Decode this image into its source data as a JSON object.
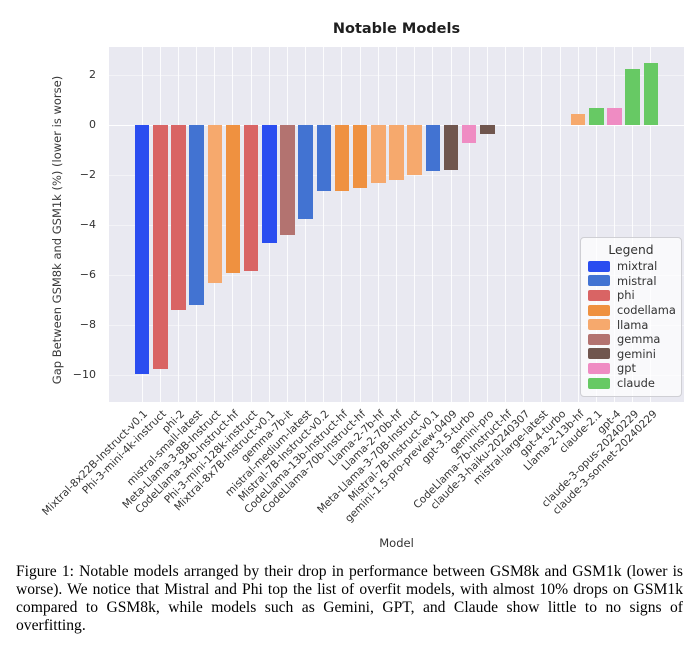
{
  "figure": {
    "title": "Notable Models",
    "xlabel": "Model",
    "ylabel": "Gap Between GSM8k and GSM1k (%) (lower is worse)"
  },
  "legend": {
    "title": "Legend",
    "entries": [
      {
        "label": "mixtral",
        "color": "#2a4df0"
      },
      {
        "label": "mistral",
        "color": "#4273d2"
      },
      {
        "label": "phi",
        "color": "#d96464"
      },
      {
        "label": "codellama",
        "color": "#ef9140"
      },
      {
        "label": "llama",
        "color": "#f6a96d"
      },
      {
        "label": "gemma",
        "color": "#b37370"
      },
      {
        "label": "gemini",
        "color": "#70564e"
      },
      {
        "label": "gpt",
        "color": "#ef8cc3"
      },
      {
        "label": "claude",
        "color": "#67c964"
      }
    ]
  },
  "chart_data": {
    "type": "bar",
    "title": "Notable Models",
    "xlabel": "Model",
    "ylabel": "Gap Between GSM8k and GSM1k (%) (lower is worse)",
    "ylim": [
      -11.1,
      3.1
    ],
    "yticks": [
      2,
      0,
      -2,
      -4,
      -6,
      -8,
      -10
    ],
    "grid": "white vertical category gridlines on lavender background, white line at 0",
    "legend_position": "lower right",
    "plot_background": "#e9e9f1",
    "categories": [
      "Mixtral-8x22B-Instruct-v0.1",
      "Phi-3-mini-4k-instruct",
      "phi-2",
      "mistral-small-latest",
      "Meta-Llama-3-8B-Instruct",
      "CodeLlama-34b-Instruct-hf",
      "Phi-3-mini-128k-instruct",
      "Mixtral-8x7B-Instruct-v0.1",
      "gemma-7b-it",
      "mistral-medium-latest",
      "Mistral-7B-Instruct-v0.2",
      "CodeLlama-13b-Instruct-hf",
      "CodeLlama-70b-Instruct-hf",
      "Llama-2-7b-hf",
      "Llama-2-70b-hf",
      "Meta-Llama-3-70B-Instruct",
      "Mistral-7B-Instruct-v0.1",
      "gemini-1.5-pro-preview-0409",
      "gpt-3.5-turbo",
      "gemini-pro",
      "CodeLlama-7b-Instruct-hf",
      "claude-3-haiku-20240307",
      "mistral-large-latest",
      "gpt-4-turbo",
      "Llama-2-13b-hf",
      "claude-2.1",
      "gpt-4",
      "claude-3-opus-20240229",
      "claude-3-sonnet-20240229"
    ],
    "values": [
      -9.95,
      -9.75,
      -7.4,
      -7.2,
      -6.3,
      -5.9,
      -5.85,
      -4.7,
      -4.4,
      -3.75,
      -2.65,
      -2.65,
      -2.5,
      -2.3,
      -2.2,
      -2.0,
      -1.85,
      -1.8,
      -0.7,
      -0.35,
      0,
      0,
      0,
      0,
      0.45,
      0.7,
      0.7,
      2.25,
      2.5
    ],
    "families": [
      "mixtral",
      "phi",
      "phi",
      "mistral",
      "llama",
      "codellama",
      "phi",
      "mixtral",
      "gemma",
      "mistral",
      "mistral",
      "codellama",
      "codellama",
      "llama",
      "llama",
      "llama",
      "mistral",
      "gemini",
      "gpt",
      "gemini",
      "codellama",
      "claude",
      "mistral",
      "gpt",
      "llama",
      "claude",
      "gpt",
      "claude",
      "claude"
    ]
  },
  "caption": "Figure 1: Notable models arranged by their drop in performance between GSM8k and GSM1k (lower is worse). We notice that Mistral and Phi top the list of overfit models, with almost 10% drops on GSM1k compared to GSM8k, while models such as Gemini, GPT, and Claude show little to no signs of overfitting."
}
